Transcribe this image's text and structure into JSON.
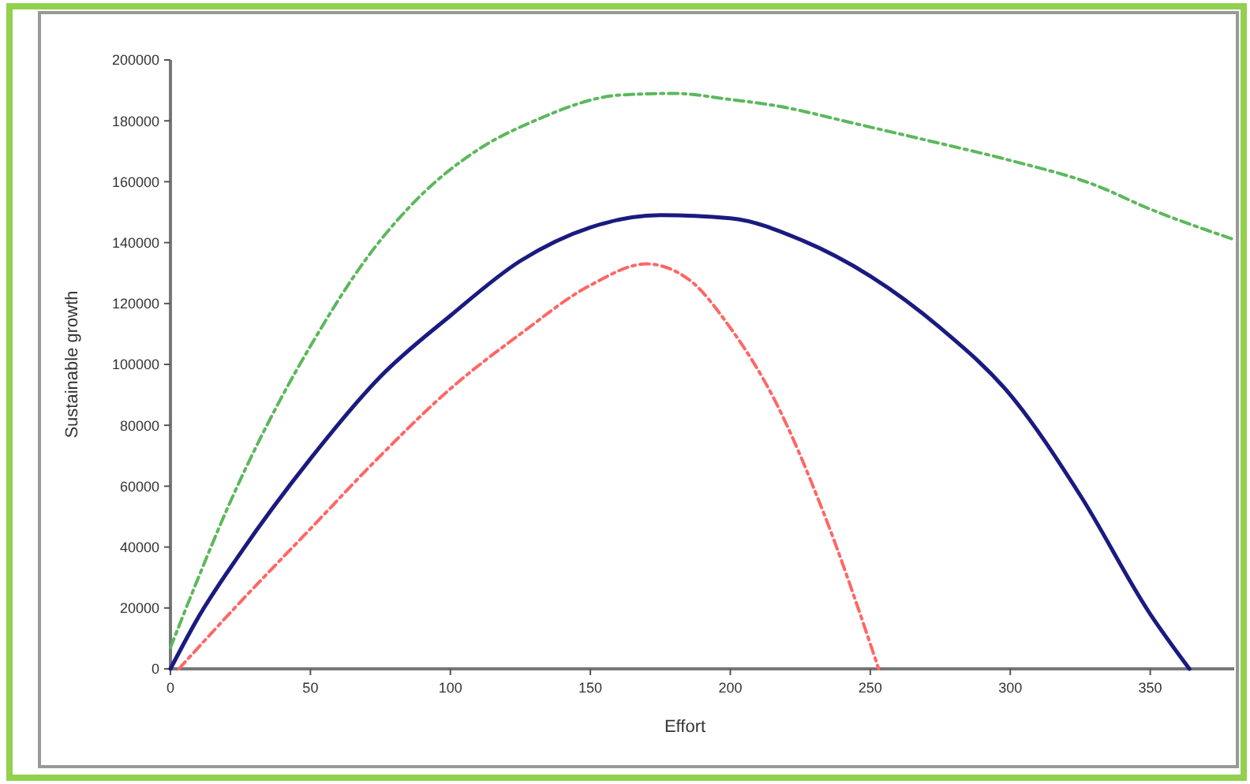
{
  "chart_data": {
    "type": "line",
    "xlabel": "Effort",
    "ylabel": "Sustainable growth",
    "xlim": [
      0,
      380
    ],
    "xticks": [
      0,
      50,
      100,
      150,
      200,
      250,
      300,
      350
    ],
    "ylim": [
      0,
      200000
    ],
    "yticks": [
      0,
      20000,
      40000,
      60000,
      80000,
      100000,
      120000,
      140000,
      160000,
      180000,
      200000
    ],
    "marker": "none",
    "series": [
      {
        "color": "#5cb85c",
        "line_style": "dashed",
        "x": [
          0,
          10,
          20,
          39,
          50,
          71,
          90,
          109,
          130,
          161,
          180,
          200,
          216,
          245,
          273,
          300,
          330,
          350,
          380
        ],
        "values": [
          7000,
          30000,
          52000,
          88000,
          106000,
          136000,
          156000,
          170000,
          180000,
          188500,
          189000,
          187000,
          185000,
          179000,
          173000,
          167000,
          159000,
          151000,
          141000
        ]
      },
      {
        "color": "#1a1a80",
        "line_style": "solid",
        "x": [
          0,
          10,
          25,
          50,
          75,
          100,
          125,
          150,
          175,
          200,
          225,
          250,
          275,
          300,
          325,
          350,
          364
        ],
        "values": [
          0,
          17000,
          38000,
          69000,
          96000,
          116000,
          134000,
          145000,
          149000,
          148000,
          141000,
          129000,
          112000,
          90000,
          57000,
          18000,
          0
        ]
      },
      {
        "color": "#ff6666",
        "line_style": "dashed",
        "x": [
          3,
          25,
          50,
          75,
          100,
          125,
          150,
          170,
          185,
          200,
          216,
          233,
          253
        ],
        "values": [
          0,
          22000,
          46000,
          70000,
          92000,
          110000,
          126000,
          133000,
          128000,
          112000,
          88000,
          52000,
          0
        ]
      }
    ]
  }
}
